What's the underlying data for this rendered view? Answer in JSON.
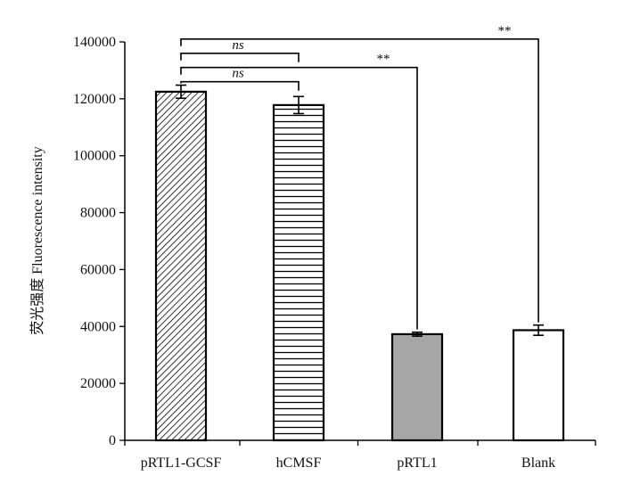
{
  "chart_data": {
    "type": "bar",
    "title": "",
    "xlabel": "",
    "ylabel": "荧光强度 Fluorescence intensity",
    "ylim": [
      0,
      140000
    ],
    "yticks": [
      0,
      20000,
      40000,
      60000,
      80000,
      100000,
      120000,
      140000
    ],
    "categories": [
      "pRTL1-GCSF",
      "hCMSF",
      "pRTL1",
      "Blank"
    ],
    "values": [
      122500,
      117800,
      37300,
      38700
    ],
    "errors": [
      2300,
      3000,
      700,
      1800
    ],
    "bar_styles": [
      "diagonal-hatch",
      "horizontal-hatch",
      "gray-fill",
      "white-fill"
    ],
    "colors": {
      "gray_fill": "#a6a6a6",
      "outline": "#000000"
    },
    "grid": false,
    "significance": [
      {
        "from": "pRTL1-GCSF",
        "to": "hCMSF",
        "label": "ns",
        "level": 126000
      },
      {
        "from": "pRTL1-GCSF",
        "to": "pRTL1",
        "label": "**",
        "level": 131000
      },
      {
        "from": "pRTL1-GCSF",
        "to": "hCMSF",
        "label": "ns",
        "level": 136000
      },
      {
        "from": "pRTL1-GCSF",
        "to": "Blank",
        "label": "**",
        "level": 141000
      }
    ]
  }
}
